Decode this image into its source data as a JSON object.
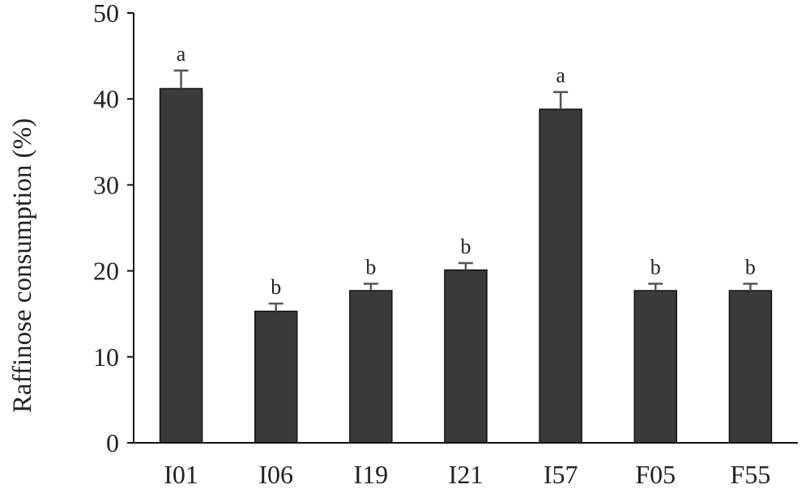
{
  "chart_data": {
    "type": "bar",
    "title": "",
    "xlabel": "",
    "ylabel": "Raffinose consumption (%)",
    "ylim": [
      0,
      50
    ],
    "yticks": [
      0,
      10,
      20,
      30,
      40,
      50
    ],
    "grid": false,
    "legend": "none",
    "bar_color": "#3a3a3a",
    "error_color": "#555555",
    "categories": [
      "I01",
      "I06",
      "I19",
      "I21",
      "I57",
      "F05",
      "F55"
    ],
    "values": [
      41.2,
      15.3,
      17.7,
      20.1,
      38.8,
      17.7,
      17.7
    ],
    "errors": [
      2.1,
      0.9,
      0.8,
      0.8,
      2.0,
      0.8,
      0.8
    ],
    "significance": [
      "a",
      "b",
      "b",
      "b",
      "a",
      "b",
      "b"
    ]
  }
}
